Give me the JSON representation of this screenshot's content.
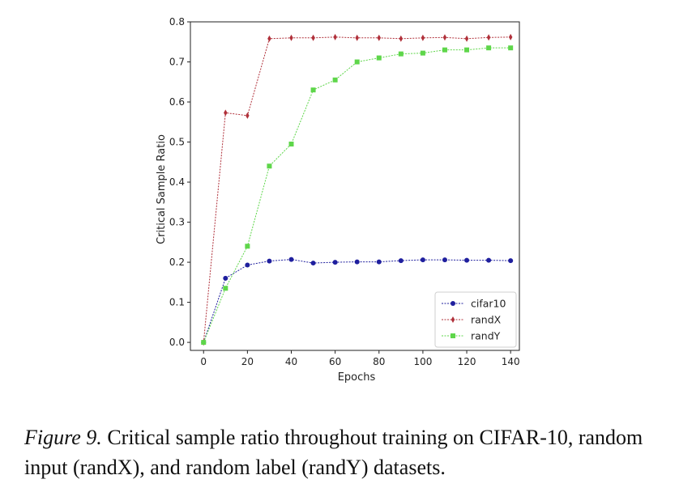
{
  "chart_data": {
    "type": "line",
    "xlabel": "Epochs",
    "ylabel": "Critical Sample Ratio",
    "xlim": [
      -6,
      144
    ],
    "ylim": [
      -0.02,
      0.8
    ],
    "xticks": [
      0,
      20,
      40,
      60,
      80,
      100,
      120,
      140
    ],
    "yticks": [
      0.0,
      0.1,
      0.2,
      0.3,
      0.4,
      0.5,
      0.6,
      0.7,
      0.8
    ],
    "grid": false,
    "legend_position": "bottom-right",
    "x": [
      0,
      10,
      20,
      30,
      40,
      50,
      60,
      70,
      80,
      90,
      100,
      110,
      120,
      130,
      140
    ],
    "series": [
      {
        "name": "cifar10",
        "color": "#1f1f9e",
        "marker": "circle",
        "values": [
          0.0,
          0.16,
          0.193,
          0.203,
          0.207,
          0.198,
          0.2,
          0.201,
          0.201,
          0.204,
          0.206,
          0.206,
          0.205,
          0.205,
          0.204
        ]
      },
      {
        "name": "randX",
        "color": "#b0303a",
        "marker": "diamond",
        "values": [
          0.0,
          0.573,
          0.566,
          0.758,
          0.76,
          0.76,
          0.762,
          0.76,
          0.76,
          0.758,
          0.76,
          0.761,
          0.758,
          0.761,
          0.762
        ]
      },
      {
        "name": "randY",
        "color": "#5ed64a",
        "marker": "square",
        "values": [
          0.0,
          0.135,
          0.24,
          0.44,
          0.495,
          0.63,
          0.655,
          0.7,
          0.71,
          0.72,
          0.722,
          0.73,
          0.73,
          0.735,
          0.735
        ]
      }
    ]
  },
  "caption": {
    "label": "Figure 9.",
    "text": "Critical sample ratio throughout training on CIFAR-10, random input (randX), and random label (randY) datasets."
  }
}
